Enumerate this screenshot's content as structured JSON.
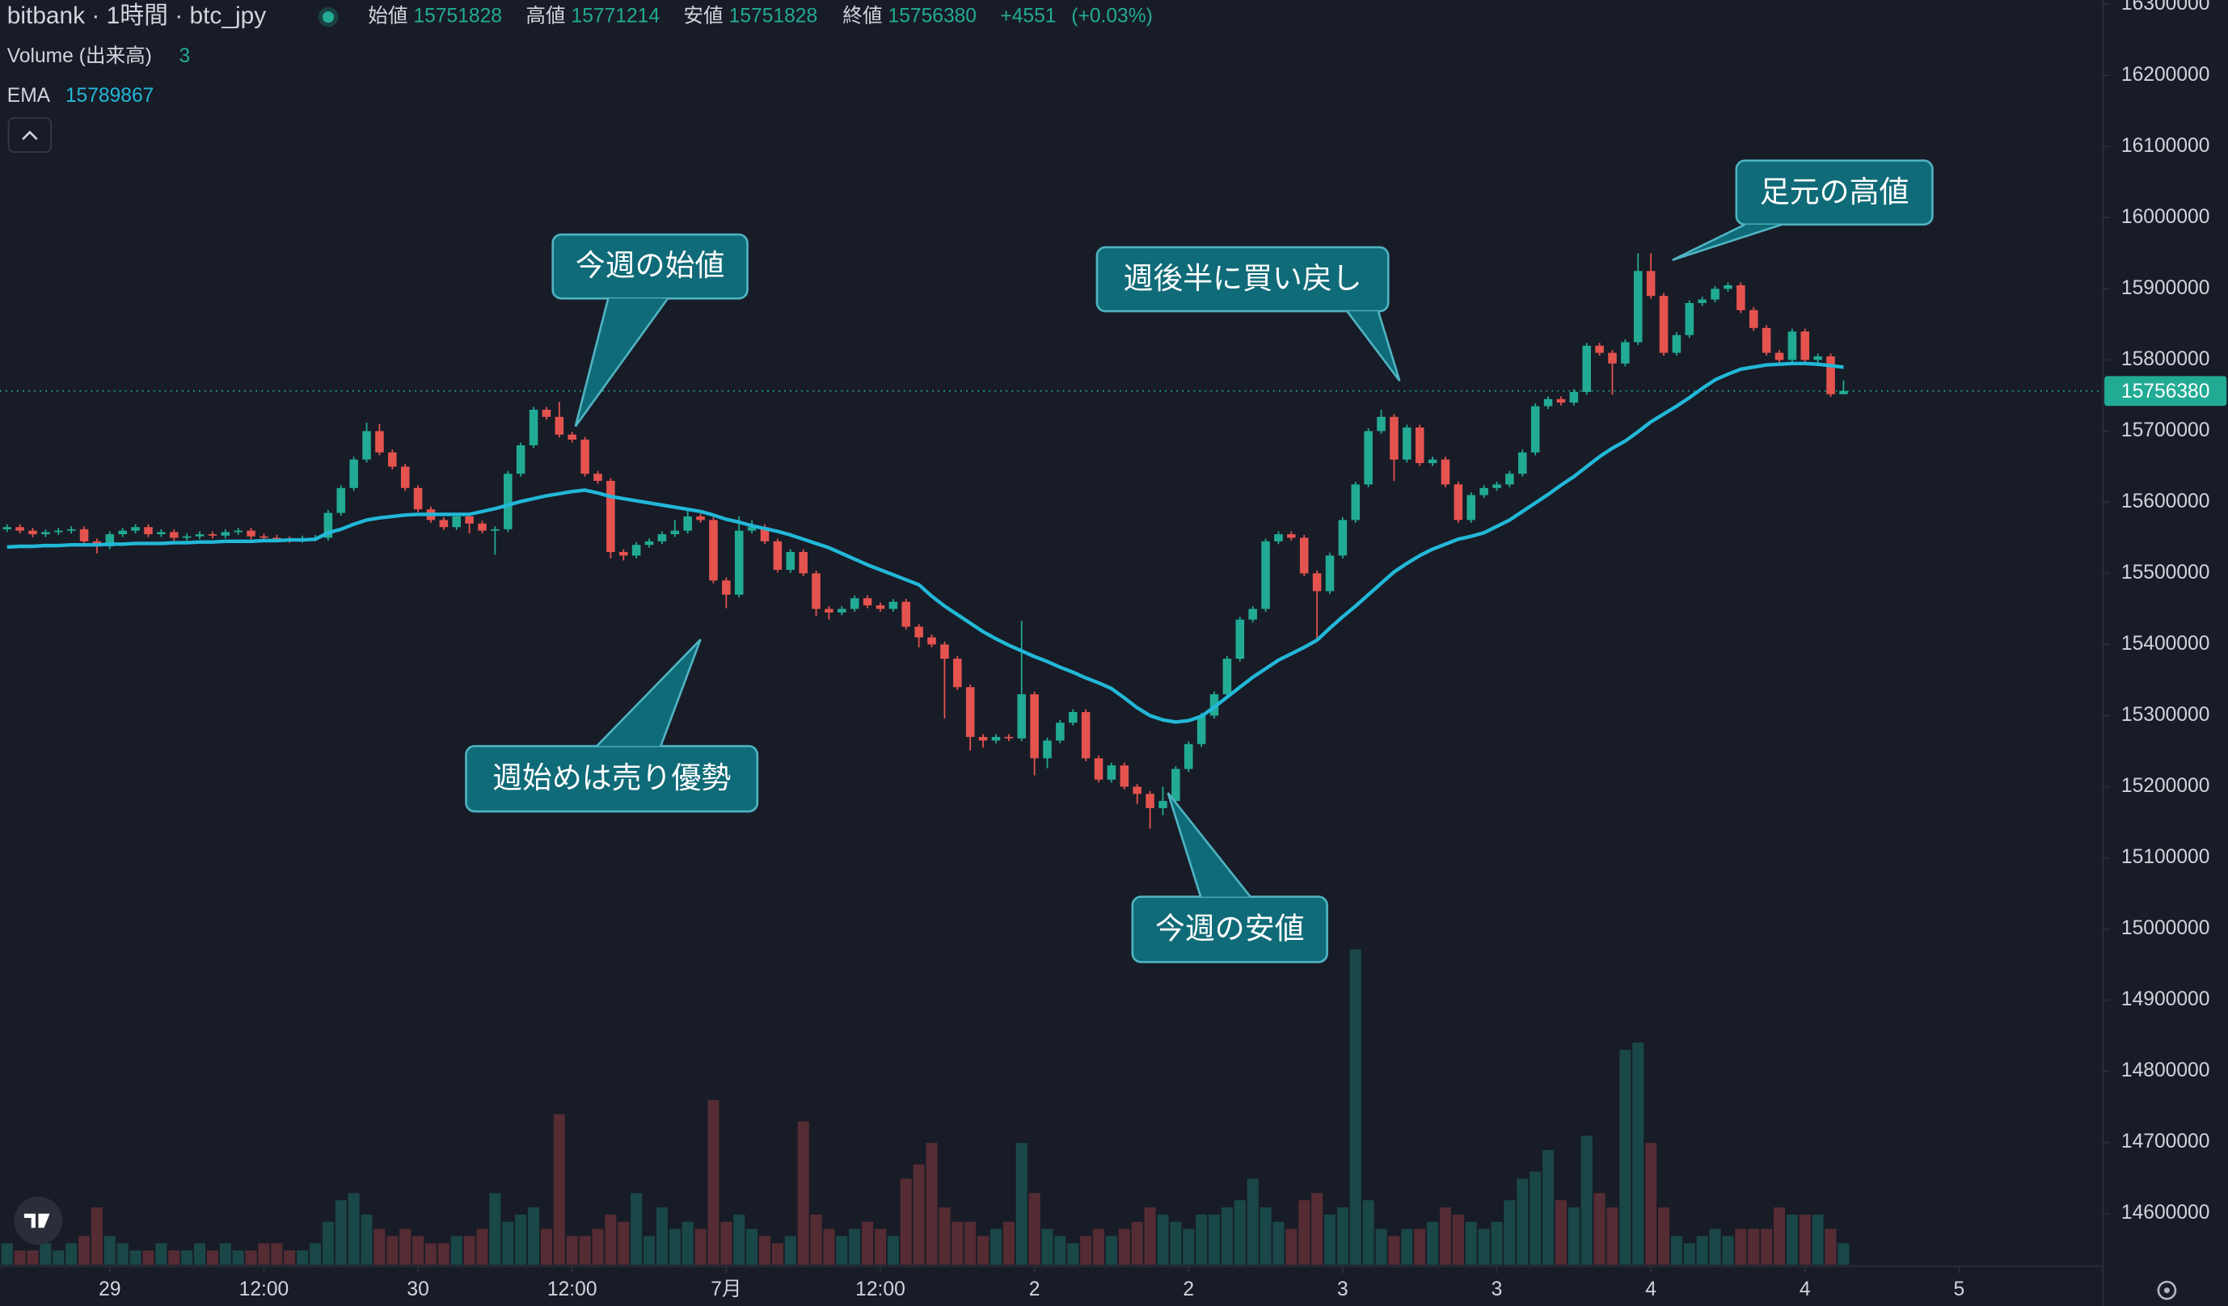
{
  "chart_data": {
    "type": "candlestick",
    "title": "bitbank · 1時間 · btc_jpy",
    "ohlc_labels": [
      "始値",
      "高値",
      "安値",
      "終値"
    ],
    "change": {
      "value": 4551,
      "label": "+4551"
    },
    "change_pct": {
      "value": 0.03,
      "label": "(+0.03%)"
    },
    "volume_label": "Volume (出来高)",
    "ema_label": "EMA",
    "up_color": "#22ab94",
    "down_color": "#e5534f",
    "ema_color": "#22b8d8",
    "ylim": [
      14528000,
      16306000
    ],
    "yticks": [
      14600000,
      14700000,
      14800000,
      14900000,
      15000000,
      15100000,
      15200000,
      15300000,
      15400000,
      15500000,
      15600000,
      15700000,
      15800000,
      15900000,
      16000000,
      16100000,
      16200000,
      16300000
    ],
    "xlim": [
      -0.55,
      163.2
    ],
    "xticks": [
      {
        "value": 8,
        "label": "29"
      },
      {
        "value": 20,
        "label": "12:00"
      },
      {
        "value": 32,
        "label": "30"
      },
      {
        "value": 44,
        "label": "12:00"
      },
      {
        "value": 56,
        "label": "7月"
      },
      {
        "value": 68,
        "label": "12:00"
      },
      {
        "value": 80,
        "label": "2"
      },
      {
        "value": 92,
        "label": "2"
      },
      {
        "value": 104,
        "label": "3"
      },
      {
        "value": 116,
        "label": "3"
      },
      {
        "value": 128,
        "label": "4"
      },
      {
        "value": 140,
        "label": "4"
      },
      {
        "value": 152,
        "label": "5"
      }
    ],
    "open": [
      15562000,
      15565000,
      15560000,
      15555000,
      15558000,
      15560000,
      15562000,
      15545000,
      15538000,
      15555000,
      15560000,
      15565000,
      15555000,
      15558000,
      15550000,
      15552000,
      15555000,
      15553000,
      15558000,
      15560000,
      15552000,
      15550000,
      15548000,
      15547000,
      15549000,
      15550000,
      15585000,
      15620000,
      15660000,
      15700000,
      15670000,
      15650000,
      15620000,
      15590000,
      15575000,
      15565000,
      15580000,
      15570000,
      15560000,
      15562000,
      15640000,
      15680000,
      15730000,
      15720000,
      15695000,
      15688000,
      15640000,
      15630000,
      15530000,
      15525000,
      15540000,
      15545000,
      15555000,
      15560000,
      15580000,
      15575000,
      15490000,
      15470000,
      15560000,
      15565000,
      15545000,
      15505000,
      15530000,
      15500000,
      15450000,
      15445000,
      15450000,
      15465000,
      15455000,
      15450000,
      15460000,
      15425000,
      15410000,
      15400000,
      15380000,
      15340000,
      15270000,
      15265000,
      15270000,
      15268000,
      15330000,
      15240000,
      15265000,
      15290000,
      15305000,
      15240000,
      15210000,
      15230000,
      15200000,
      15190000,
      15170000,
      15180000,
      15225000,
      15260000,
      15300000,
      15330000,
      15380000,
      15435000,
      15450000,
      15545000,
      15555000,
      15550000,
      15500000,
      15475000,
      15525000,
      15575000,
      15625000,
      15700000,
      15720000,
      15660000,
      15705000,
      15655000,
      15660000,
      15625000,
      15575000,
      15610000,
      15620000,
      15625000,
      15640000,
      15670000,
      15735000,
      15745000,
      15740000,
      15755000,
      15820000,
      15810000,
      15795000,
      15825000,
      15925000,
      15890000,
      15810000,
      15835000,
      15880000,
      15885000,
      15900000,
      15905000,
      15870000,
      15845000,
      15810000,
      15800000,
      15840000,
      15800000,
      15805000,
      15751828
    ],
    "high": [
      15569000,
      15569000,
      15564000,
      15562000,
      15564000,
      15566000,
      15566000,
      15549000,
      15559000,
      15564000,
      15569000,
      15569000,
      15562000,
      15562000,
      15556000,
      15559000,
      15559000,
      15562000,
      15564000,
      15564000,
      15556000,
      15554000,
      15552000,
      15553000,
      15554000,
      15589000,
      15624000,
      15664000,
      15712000,
      15710000,
      15674000,
      15654000,
      15624000,
      15594000,
      15579000,
      15584000,
      15584000,
      15574000,
      15566000,
      15644000,
      15684000,
      15734000,
      15734000,
      15741000,
      15699000,
      15692000,
      15644000,
      15634000,
      15534000,
      15544000,
      15549000,
      15559000,
      15575000,
      15592000,
      15584000,
      15579000,
      15494000,
      15580000,
      15575000,
      15569000,
      15549000,
      15534000,
      15534000,
      15504000,
      15454000,
      15454000,
      15469000,
      15469000,
      15459000,
      15464000,
      15464000,
      15429000,
      15414000,
      15404000,
      15384000,
      15344000,
      15274000,
      15274000,
      15274000,
      15433000,
      15334000,
      15269000,
      15294000,
      15309000,
      15309000,
      15244000,
      15234000,
      15234000,
      15204000,
      15194000,
      15200000,
      15229000,
      15264000,
      15304000,
      15334000,
      15384000,
      15439000,
      15454000,
      15549000,
      15559000,
      15559000,
      15554000,
      15504000,
      15529000,
      15579000,
      15629000,
      15704000,
      15730000,
      15724000,
      15709000,
      15709000,
      15664000,
      15664000,
      15629000,
      15614000,
      15624000,
      15629000,
      15644000,
      15674000,
      15739000,
      15749000,
      15749000,
      15759000,
      15824000,
      15824000,
      15814000,
      15829000,
      15950000,
      15950000,
      15894000,
      15839000,
      15884000,
      15889000,
      15904000,
      15909000,
      15909000,
      15874000,
      15849000,
      15814000,
      15844000,
      15844000,
      15809000,
      15809000,
      15771214
    ],
    "low": [
      15558000,
      15556000,
      15551000,
      15551000,
      15554000,
      15556000,
      15541000,
      15528000,
      15534000,
      15551000,
      15556000,
      15551000,
      15551000,
      15546000,
      15546000,
      15548000,
      15549000,
      15549000,
      15554000,
      15548000,
      15546000,
      15544000,
      15543000,
      15543000,
      15545000,
      15546000,
      15581000,
      15616000,
      15656000,
      15666000,
      15646000,
      15616000,
      15586000,
      15571000,
      15561000,
      15561000,
      15556000,
      15556000,
      15526000,
      15558000,
      15636000,
      15676000,
      15716000,
      15691000,
      15684000,
      15636000,
      15626000,
      15521000,
      15518000,
      15521000,
      15536000,
      15541000,
      15551000,
      15556000,
      15571000,
      15486000,
      15451000,
      15466000,
      15556000,
      15541000,
      15501000,
      15501000,
      15496000,
      15440000,
      15435000,
      15441000,
      15446000,
      15451000,
      15446000,
      15446000,
      15421000,
      15396000,
      15396000,
      15296000,
      15336000,
      15251000,
      15255000,
      15261000,
      15264000,
      15264000,
      15216000,
      15226000,
      15261000,
      15286000,
      15236000,
      15206000,
      15206000,
      15196000,
      15176000,
      15141000,
      15160000,
      15176000,
      15221000,
      15256000,
      15296000,
      15326000,
      15376000,
      15431000,
      15446000,
      15541000,
      15546000,
      15496000,
      15407000,
      15471000,
      15521000,
      15571000,
      15621000,
      15696000,
      15630000,
      15656000,
      15651000,
      15651000,
      15621000,
      15571000,
      15571000,
      15606000,
      15616000,
      15621000,
      15636000,
      15666000,
      15731000,
      15736000,
      15736000,
      15751000,
      15806000,
      15751000,
      15791000,
      15821000,
      15886000,
      15806000,
      15806000,
      15831000,
      15876000,
      15881000,
      15896000,
      15866000,
      15841000,
      15806000,
      15796000,
      15796000,
      15796000,
      15796000,
      15748000,
      15751828
    ],
    "close": [
      15565000,
      15560000,
      15555000,
      15558000,
      15560000,
      15562000,
      15545000,
      15538000,
      15555000,
      15560000,
      15565000,
      15555000,
      15558000,
      15550000,
      15552000,
      15555000,
      15553000,
      15558000,
      15560000,
      15552000,
      15550000,
      15548000,
      15547000,
      15549000,
      15550000,
      15585000,
      15620000,
      15660000,
      15700000,
      15670000,
      15650000,
      15620000,
      15590000,
      15575000,
      15565000,
      15580000,
      15570000,
      15560000,
      15562000,
      15640000,
      15680000,
      15730000,
      15720000,
      15695000,
      15688000,
      15640000,
      15630000,
      15530000,
      15525000,
      15540000,
      15545000,
      15555000,
      15560000,
      15580000,
      15575000,
      15490000,
      15470000,
      15560000,
      15565000,
      15545000,
      15505000,
      15530000,
      15500000,
      15450000,
      15445000,
      15450000,
      15465000,
      15455000,
      15450000,
      15460000,
      15425000,
      15410000,
      15400000,
      15380000,
      15340000,
      15270000,
      15265000,
      15270000,
      15268000,
      15330000,
      15240000,
      15265000,
      15290000,
      15305000,
      15240000,
      15210000,
      15230000,
      15200000,
      15190000,
      15170000,
      15180000,
      15225000,
      15260000,
      15300000,
      15330000,
      15380000,
      15435000,
      15450000,
      15545000,
      15555000,
      15550000,
      15500000,
      15475000,
      15525000,
      15575000,
      15625000,
      15700000,
      15720000,
      15660000,
      15705000,
      15655000,
      15660000,
      15625000,
      15575000,
      15610000,
      15620000,
      15625000,
      15640000,
      15670000,
      15735000,
      15745000,
      15740000,
      15755000,
      15820000,
      15810000,
      15795000,
      15825000,
      15925000,
      15890000,
      15810000,
      15835000,
      15880000,
      15885000,
      15900000,
      15905000,
      15870000,
      15845000,
      15810000,
      15800000,
      15840000,
      15800000,
      15805000,
      15751828,
      15756380
    ],
    "volume": [
      3,
      2,
      2,
      3,
      2,
      3,
      4,
      8,
      4,
      3,
      2,
      2,
      3,
      2,
      2,
      3,
      2,
      3,
      2,
      2,
      3,
      3,
      2,
      2,
      3,
      6,
      9,
      10,
      7,
      5,
      4,
      5,
      4,
      3,
      3,
      4,
      4,
      5,
      10,
      6,
      7,
      8,
      5,
      21,
      4,
      4,
      5,
      7,
      6,
      10,
      4,
      8,
      5,
      6,
      5,
      23,
      6,
      7,
      5,
      4,
      3,
      4,
      20,
      7,
      5,
      4,
      5,
      6,
      5,
      4,
      12,
      14,
      17,
      8,
      6,
      6,
      4,
      5,
      6,
      17,
      10,
      5,
      4,
      3,
      4,
      5,
      4,
      5,
      6,
      8,
      7,
      6,
      5,
      7,
      7,
      8,
      9,
      12,
      8,
      6,
      5,
      9,
      10,
      7,
      8,
      44,
      9,
      5,
      4,
      5,
      5,
      6,
      8,
      7,
      6,
      5,
      6,
      9,
      12,
      13,
      16,
      9,
      8,
      18,
      10,
      8,
      30,
      31,
      17,
      8,
      4,
      3,
      4,
      5,
      4,
      5,
      5,
      5,
      8,
      7,
      7,
      7,
      5,
      3
    ],
    "ema": [
      15537000,
      15538000,
      15538000,
      15539000,
      15539000,
      15540000,
      15540000,
      15540000,
      15541000,
      15541000,
      15542000,
      15542000,
      15542000,
      15543000,
      15543000,
      15544000,
      15544000,
      15545000,
      15545000,
      15545000,
      15546000,
      15546000,
      15547000,
      15547000,
      15548000,
      15557000,
      15562000,
      15569000,
      15575000,
      15578000,
      15580000,
      15582000,
      15583000,
      15583000,
      15583000,
      15583000,
      15583000,
      15587000,
      15591000,
      15596000,
      15601000,
      15605000,
      15609000,
      15612000,
      15615000,
      15617000,
      15613000,
      15608000,
      15605000,
      15602000,
      15599000,
      15596000,
      15593000,
      15590000,
      15587000,
      15582000,
      15576000,
      15572000,
      15567000,
      15563000,
      15559000,
      15554000,
      15548000,
      15542000,
      15536000,
      15528000,
      15520000,
      15512000,
      15505000,
      15498000,
      15491000,
      15484000,
      15468000,
      15454000,
      15442000,
      15430000,
      15418000,
      15408000,
      15399000,
      15391000,
      15383000,
      15376000,
      15368000,
      15361000,
      15353000,
      15346000,
      15338000,
      15325000,
      15311000,
      15300000,
      15294000,
      15291000,
      15293000,
      15299000,
      15312000,
      15326000,
      15340000,
      15354000,
      15366000,
      15378000,
      15387000,
      15396000,
      15406000,
      15423000,
      15439000,
      15454000,
      15470000,
      15486000,
      15502000,
      15514000,
      15525000,
      15534000,
      15541000,
      15548000,
      15552000,
      15557000,
      15566000,
      15575000,
      15587000,
      15599000,
      15611000,
      15624000,
      15636000,
      15650000,
      15664000,
      15676000,
      15686000,
      15699000,
      15713000,
      15724000,
      15735000,
      15747000,
      15760000,
      15772000,
      15780000,
      15787000,
      15790000,
      15793000,
      15794000,
      15795000,
      15795000,
      15794000,
      15792000,
      15789867
    ],
    "annotations": [
      {
        "text": "今週の始値"
      },
      {
        "text": "週後半に買い戻し"
      },
      {
        "text": "足元の高値"
      },
      {
        "text": "週始めは売り優勢"
      },
      {
        "text": "今週の安値"
      }
    ]
  }
}
